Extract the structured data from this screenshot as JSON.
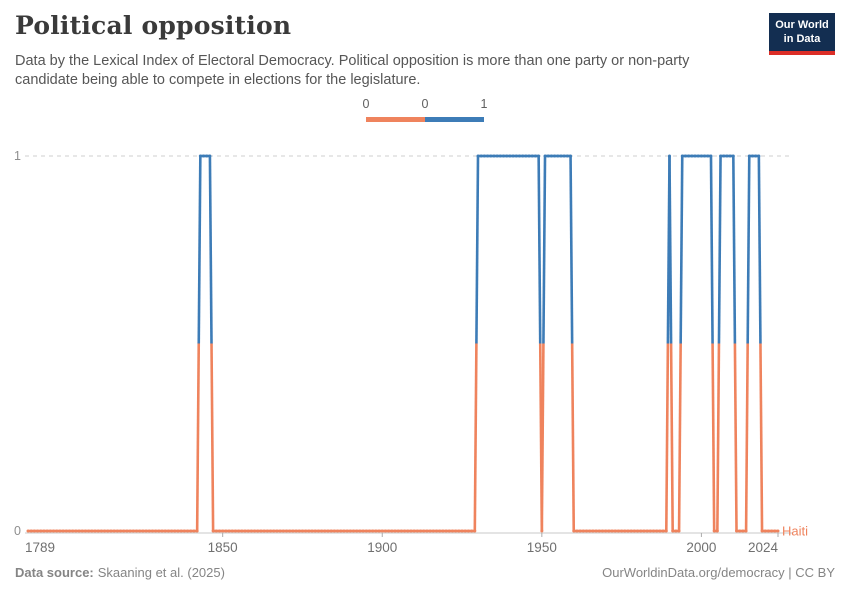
{
  "header": {
    "title": "Political opposition",
    "subtitle": "Data by the Lexical Index of Electoral Democracy. Political opposition is more than one party or non-party candidate being able to compete in elections for the legislature.",
    "logo": {
      "line1": "Our World",
      "line2": "in Data"
    }
  },
  "legend": {
    "labels": [
      "0",
      "0",
      "1"
    ],
    "zero_color": "#ef835d",
    "one_color": "#3d7cb7"
  },
  "chart_data": {
    "type": "line",
    "title": "Political opposition",
    "entity": "Haiti",
    "entity_label_color": "#ef835d",
    "x_range": [
      1789,
      2024
    ],
    "x_ticks": [
      "1789",
      "1850",
      "1900",
      "1950",
      "2000",
      "2024"
    ],
    "y_ticks": [
      "0",
      "1"
    ],
    "ylim": [
      0,
      1
    ],
    "grid": "dashed gridline at y=1, solid baseline at y=0",
    "legend_position": "top-center",
    "colors": {
      "0": "#ef835d",
      "1": "#3d7cb7"
    },
    "segments": [
      {
        "start": 1789,
        "end": 1842,
        "value": 0
      },
      {
        "start": 1843,
        "end": 1846,
        "value": 1
      },
      {
        "start": 1847,
        "end": 1929,
        "value": 0
      },
      {
        "start": 1930,
        "end": 1949,
        "value": 1
      },
      {
        "start": 1950,
        "end": 1950,
        "value": 0
      },
      {
        "start": 1951,
        "end": 1959,
        "value": 1
      },
      {
        "start": 1960,
        "end": 1989,
        "value": 0
      },
      {
        "start": 1990,
        "end": 1990,
        "value": 1
      },
      {
        "start": 1991,
        "end": 1993,
        "value": 0
      },
      {
        "start": 1994,
        "end": 2003,
        "value": 1
      },
      {
        "start": 2004,
        "end": 2005,
        "value": 0
      },
      {
        "start": 2006,
        "end": 2010,
        "value": 1
      },
      {
        "start": 2011,
        "end": 2014,
        "value": 0
      },
      {
        "start": 2015,
        "end": 2018,
        "value": 1
      },
      {
        "start": 2019,
        "end": 2024,
        "value": 0
      }
    ]
  },
  "footer": {
    "source_label": "Data source:",
    "source_text": "Skaaning et al. (2025)",
    "right_text": "OurWorldinData.org/democracy | CC BY"
  }
}
